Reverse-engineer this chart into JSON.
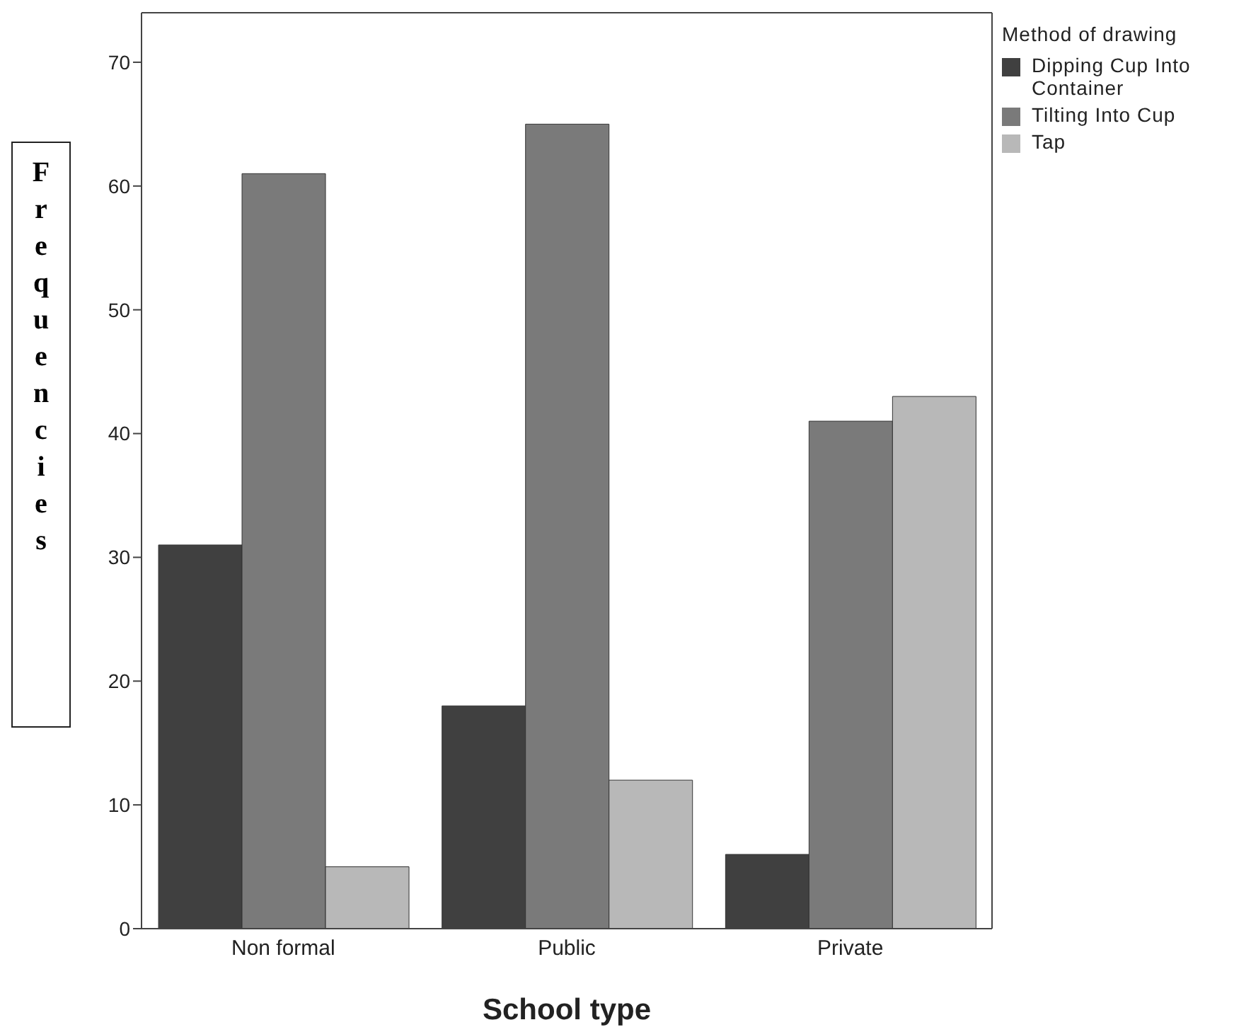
{
  "chart_data": {
    "type": "bar",
    "xlabel": "School type",
    "ylabel": "Frequencies",
    "legend_title": "Method of drawing",
    "categories": [
      "Non formal",
      "Public",
      "Private"
    ],
    "series": [
      {
        "name": "Dipping Cup Into Container",
        "color": "#404040",
        "values": [
          31,
          18,
          6
        ]
      },
      {
        "name": "Tilting Into Cup",
        "color": "#7a7a7a",
        "values": [
          61,
          65,
          41
        ]
      },
      {
        "name": "Tap",
        "color": "#b8b8b8",
        "values": [
          5,
          12,
          43
        ]
      }
    ],
    "ylim": [
      0,
      74
    ],
    "yticks": [
      0,
      10,
      20,
      30,
      40,
      50,
      60,
      70
    ],
    "legend": "top right"
  }
}
